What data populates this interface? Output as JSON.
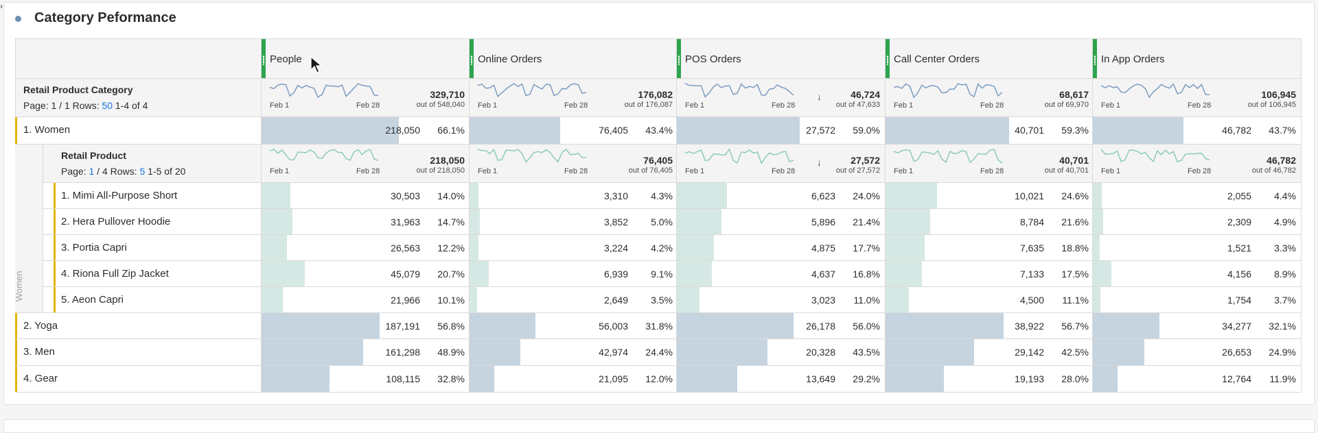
{
  "panel": {
    "title": "Category Peformance"
  },
  "columns": [
    {
      "title": "People"
    },
    {
      "title": "Online Orders"
    },
    {
      "title": "POS Orders"
    },
    {
      "title": "Call Center Orders"
    },
    {
      "title": "In App Orders"
    }
  ],
  "category_header": {
    "dimension": "Retail Product Category",
    "page_label": "Page:",
    "page": "1 / 1",
    "rows_label": "Rows:",
    "rows": "50",
    "range": "1-4 of 4",
    "totals": [
      {
        "total": "329,710",
        "out_of": "out of 548,040",
        "spark_start": "Feb 1",
        "spark_end": "Feb 28"
      },
      {
        "total": "176,082",
        "out_of": "out of 176,087",
        "spark_start": "Feb 1",
        "spark_end": "Feb 28"
      },
      {
        "total": "46,724",
        "out_of": "out of 47,633",
        "spark_start": "Feb 1",
        "spark_end": "Feb 28"
      },
      {
        "total": "68,617",
        "out_of": "out of 69,970",
        "spark_start": "Feb 1",
        "spark_end": "Feb 28"
      },
      {
        "total": "106,945",
        "out_of": "out of 106,945",
        "spark_start": "Feb 1",
        "spark_end": "Feb 28"
      }
    ]
  },
  "product_header": {
    "dimension": "Retail Product",
    "page_label": "Page:",
    "page_current": "1",
    "page_total": "/ 4",
    "rows_label": "Rows:",
    "rows": "5",
    "range": "1-5 of 20",
    "side_label": "Women",
    "totals": [
      {
        "total": "218,050",
        "out_of": "out of 218,050",
        "spark_start": "Feb 1",
        "spark_end": "Feb 28"
      },
      {
        "total": "76,405",
        "out_of": "out of 76,405",
        "spark_start": "Feb 1",
        "spark_end": "Feb 28"
      },
      {
        "total": "27,572",
        "out_of": "out of 27,572",
        "spark_start": "Feb 1",
        "spark_end": "Feb 28"
      },
      {
        "total": "40,701",
        "out_of": "out of 40,701",
        "spark_start": "Feb 1",
        "spark_end": "Feb 28"
      },
      {
        "total": "46,782",
        "out_of": "out of 46,782",
        "spark_start": "Feb 1",
        "spark_end": "Feb 28"
      }
    ]
  },
  "rows": [
    {
      "label": "1.  Women",
      "level": 0,
      "cells": [
        {
          "value": "218,050",
          "pct": "66.1%",
          "frac": 0.661
        },
        {
          "value": "76,405",
          "pct": "43.4%",
          "frac": 0.434
        },
        {
          "value": "27,572",
          "pct": "59.0%",
          "frac": 0.59
        },
        {
          "value": "40,701",
          "pct": "59.3%",
          "frac": 0.593
        },
        {
          "value": "46,782",
          "pct": "43.7%",
          "frac": 0.437
        }
      ]
    },
    {
      "label": "1.  Mimi All-Purpose Short",
      "level": 1,
      "cells": [
        {
          "value": "30,503",
          "pct": "14.0%",
          "frac": 0.14
        },
        {
          "value": "3,310",
          "pct": "4.3%",
          "frac": 0.043
        },
        {
          "value": "6,623",
          "pct": "24.0%",
          "frac": 0.24
        },
        {
          "value": "10,021",
          "pct": "24.6%",
          "frac": 0.246
        },
        {
          "value": "2,055",
          "pct": "4.4%",
          "frac": 0.044
        }
      ]
    },
    {
      "label": "2.  Hera Pullover Hoodie",
      "level": 1,
      "cells": [
        {
          "value": "31,963",
          "pct": "14.7%",
          "frac": 0.147
        },
        {
          "value": "3,852",
          "pct": "5.0%",
          "frac": 0.05
        },
        {
          "value": "5,896",
          "pct": "21.4%",
          "frac": 0.214
        },
        {
          "value": "8,784",
          "pct": "21.6%",
          "frac": 0.216
        },
        {
          "value": "2,309",
          "pct": "4.9%",
          "frac": 0.049
        }
      ]
    },
    {
      "label": "3.  Portia Capri",
      "level": 1,
      "cells": [
        {
          "value": "26,563",
          "pct": "12.2%",
          "frac": 0.122
        },
        {
          "value": "3,224",
          "pct": "4.2%",
          "frac": 0.042
        },
        {
          "value": "4,875",
          "pct": "17.7%",
          "frac": 0.177
        },
        {
          "value": "7,635",
          "pct": "18.8%",
          "frac": 0.188
        },
        {
          "value": "1,521",
          "pct": "3.3%",
          "frac": 0.033
        }
      ]
    },
    {
      "label": "4.  Riona Full Zip Jacket",
      "level": 1,
      "cells": [
        {
          "value": "45,079",
          "pct": "20.7%",
          "frac": 0.207
        },
        {
          "value": "6,939",
          "pct": "9.1%",
          "frac": 0.091
        },
        {
          "value": "4,637",
          "pct": "16.8%",
          "frac": 0.168
        },
        {
          "value": "7,133",
          "pct": "17.5%",
          "frac": 0.175
        },
        {
          "value": "4,156",
          "pct": "8.9%",
          "frac": 0.089
        }
      ]
    },
    {
      "label": "5.  Aeon Capri",
      "level": 1,
      "cells": [
        {
          "value": "21,966",
          "pct": "10.1%",
          "frac": 0.101
        },
        {
          "value": "2,649",
          "pct": "3.5%",
          "frac": 0.035
        },
        {
          "value": "3,023",
          "pct": "11.0%",
          "frac": 0.11
        },
        {
          "value": "4,500",
          "pct": "11.1%",
          "frac": 0.111
        },
        {
          "value": "1,754",
          "pct": "3.7%",
          "frac": 0.037
        }
      ]
    },
    {
      "label": "2.  Yoga",
      "level": 0,
      "cells": [
        {
          "value": "187,191",
          "pct": "56.8%",
          "frac": 0.568
        },
        {
          "value": "56,003",
          "pct": "31.8%",
          "frac": 0.318
        },
        {
          "value": "26,178",
          "pct": "56.0%",
          "frac": 0.56
        },
        {
          "value": "38,922",
          "pct": "56.7%",
          "frac": 0.567
        },
        {
          "value": "34,277",
          "pct": "32.1%",
          "frac": 0.321
        }
      ]
    },
    {
      "label": "3.  Men",
      "level": 0,
      "cells": [
        {
          "value": "161,298",
          "pct": "48.9%",
          "frac": 0.489
        },
        {
          "value": "42,974",
          "pct": "24.4%",
          "frac": 0.244
        },
        {
          "value": "20,328",
          "pct": "43.5%",
          "frac": 0.435
        },
        {
          "value": "29,142",
          "pct": "42.5%",
          "frac": 0.425
        },
        {
          "value": "26,653",
          "pct": "24.9%",
          "frac": 0.249
        }
      ]
    },
    {
      "label": "4.  Gear",
      "level": 0,
      "cells": [
        {
          "value": "108,115",
          "pct": "32.8%",
          "frac": 0.328
        },
        {
          "value": "21,095",
          "pct": "12.0%",
          "frac": 0.12
        },
        {
          "value": "13,649",
          "pct": "29.2%",
          "frac": 0.292
        },
        {
          "value": "19,193",
          "pct": "28.0%",
          "frac": 0.28
        },
        {
          "value": "12,764",
          "pct": "11.9%",
          "frac": 0.119
        }
      ]
    }
  ],
  "colors": {
    "bar_dark": "#c6d4e0",
    "bar_light": "#d6e8e4",
    "spark_dark": "#7c9cbf",
    "spark_light": "#8ecbb5",
    "column_handle": "#2da44e",
    "row_marker": "#e3b505",
    "link": "#1473e6"
  },
  "icons": {
    "cursor": "mouse-pointer-icon",
    "sort": "sort-descending-icon",
    "bullet": "panel-bullet-icon"
  }
}
